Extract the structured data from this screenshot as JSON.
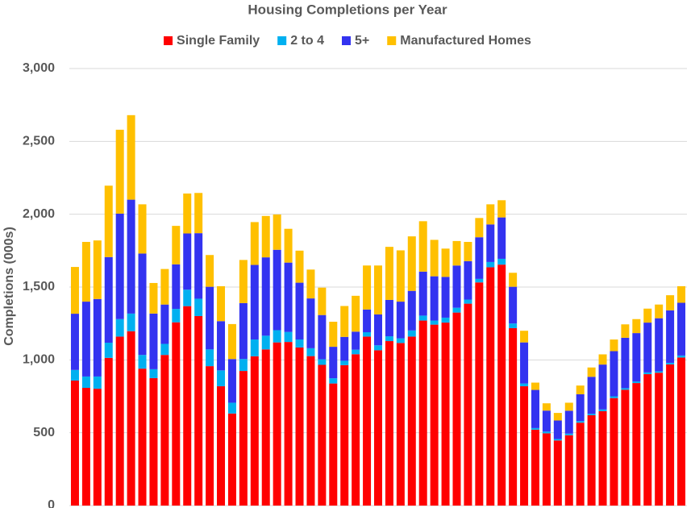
{
  "chart_data": {
    "type": "stacked_bar",
    "title": "Housing Completions per Year",
    "ylabel": "Completions (000s)",
    "categories": [
      null,
      null,
      null,
      null,
      null,
      null,
      null,
      null,
      null,
      null,
      null,
      null,
      null,
      null,
      null,
      null,
      null,
      null,
      null,
      null,
      null,
      null,
      null,
      null,
      null,
      null,
      null,
      null,
      null,
      null,
      null,
      null,
      null,
      null,
      null,
      null,
      null,
      null,
      null,
      null,
      null,
      null,
      null,
      null,
      null,
      null,
      null,
      null,
      null,
      null,
      null,
      null,
      null,
      null,
      null
    ],
    "series": [
      {
        "name": "Single Family",
        "color": "#ff0000",
        "values": [
          858,
          808,
          802,
          1014,
          1160,
          1197,
          940,
          875,
          1034,
          1258,
          1369,
          1301,
          957,
          819,
          632,
          924,
          1025,
          1072,
          1120,
          1123,
          1085,
          1026,
          966,
          838,
          964,
          1039,
          1160,
          1066,
          1129,
          1116,
          1160,
          1270,
          1242,
          1256,
          1325,
          1386,
          1532,
          1636,
          1654,
          1218,
          819,
          521,
          496,
          447,
          483,
          569,
          620,
          648,
          738,
          795,
          841,
          902,
          912,
          969,
          1016
        ]
      },
      {
        "name": "2 to 4",
        "color": "#00b0f0",
        "values": [
          73,
          78,
          84,
          104,
          120,
          121,
          94,
          61,
          76,
          92,
          113,
          119,
          115,
          109,
          74,
          82,
          115,
          94,
          84,
          69,
          55,
          54,
          38,
          36,
          30,
          31,
          30,
          34,
          33,
          32,
          42,
          34,
          28,
          34,
          33,
          28,
          24,
          36,
          40,
          32,
          19,
          11,
          12,
          10,
          11,
          11,
          10,
          12,
          12,
          11,
          11,
          12,
          10,
          11,
          14
        ]
      },
      {
        "name": "5+",
        "color": "#3333f0",
        "values": [
          386,
          514,
          532,
          588,
          724,
          782,
          696,
          382,
          270,
          306,
          386,
          450,
          430,
          338,
          300,
          384,
          512,
          538,
          552,
          476,
          390,
          342,
          304,
          216,
          164,
          124,
          156,
          212,
          250,
          252,
          272,
          302,
          304,
          280,
          290,
          264,
          286,
          258,
          284,
          252,
          282,
          262,
          144,
          127,
          157,
          184,
          254,
          308,
          310,
          346,
          332,
          342,
          364,
          360,
          362
        ]
      },
      {
        "name": "Manufactured Homes",
        "color": "#ffc000",
        "values": [
          321,
          410,
          402,
          490,
          576,
          580,
          338,
          210,
          244,
          264,
          274,
          276,
          218,
          240,
          240,
          296,
          294,
          284,
          242,
          232,
          220,
          198,
          188,
          172,
          212,
          246,
          302,
          336,
          364,
          352,
          374,
          346,
          250,
          194,
          168,
          132,
          132,
          138,
          118,
          96,
          80,
          50,
          50,
          52,
          55,
          60,
          64,
          70,
          80,
          92,
          96,
          96,
          94,
          104,
          114
        ]
      }
    ],
    "ylim": [
      0,
      3000
    ],
    "yticks": [
      0,
      {
        "value": 500,
        "label": "500"
      },
      {
        "value": 1000,
        "label": "1,000"
      },
      {
        "value": 1500,
        "label": "1,500"
      },
      {
        "value": 2000,
        "label": "2,000"
      },
      {
        "value": 2500,
        "label": "2,500"
      },
      {
        "value": 3000,
        "label": "3,000"
      }
    ],
    "grid": true,
    "legend": "top"
  }
}
